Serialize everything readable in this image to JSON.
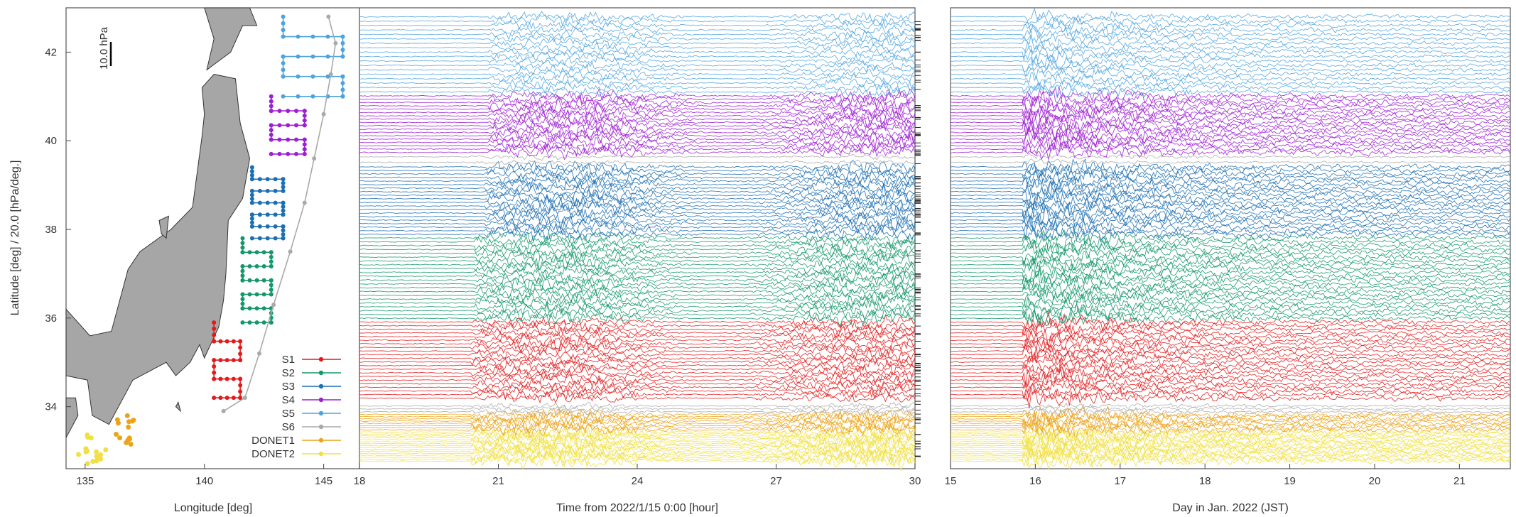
{
  "chart_data": [
    {
      "type": "map",
      "xlabel": "Longitude [deg]",
      "ylabel": "Latitude [deg] / 20.0 [hPa/deg.]",
      "xticks": [
        "135",
        "140",
        "145"
      ],
      "yticks": [
        "34",
        "36",
        "38",
        "40",
        "42"
      ],
      "xlim": [
        134.2,
        146.5
      ],
      "ylim": [
        32.6,
        43.0
      ],
      "scale_bar": "10.0 hPa",
      "legend": [
        "S1",
        "S2",
        "S3",
        "S4",
        "S5",
        "S6",
        "DONET1",
        "DONET2"
      ],
      "series": [
        {
          "name": "S1",
          "color": "#e31a1c",
          "lat_range": [
            34.2,
            35.9
          ]
        },
        {
          "name": "S2",
          "color": "#13976b",
          "lat_range": [
            35.9,
            37.8
          ]
        },
        {
          "name": "S3",
          "color": "#1c6fb3",
          "lat_range": [
            37.8,
            39.4
          ]
        },
        {
          "name": "S4",
          "color": "#9d1fd3",
          "lat_range": [
            39.7,
            41.0
          ]
        },
        {
          "name": "S5",
          "color": "#4da3df",
          "lat_range": [
            41.0,
            42.8
          ]
        },
        {
          "name": "S6",
          "color": "#a9a9a9",
          "lat_range": [
            33.9,
            42.8
          ]
        },
        {
          "name": "DONET1",
          "color": "#eba31a",
          "lat_range": [
            33.0,
            33.8
          ]
        },
        {
          "name": "DONET2",
          "color": "#f1e043",
          "lat_range": [
            32.7,
            33.4
          ]
        }
      ]
    },
    {
      "type": "line",
      "xlabel": "Time from 2022/1/15 0:00 [hour]",
      "xticks": [
        "18",
        "21",
        "24",
        "27",
        "30"
      ],
      "xlim": [
        18,
        30
      ],
      "ylim": [
        32.6,
        43.0
      ],
      "arrival_hour": {
        "S5": 20.8,
        "S4": 20.8,
        "S3": 20.7,
        "S2": 20.5,
        "S1": 20.4,
        "DONET": 20.4
      }
    },
    {
      "type": "line",
      "xlabel": "Day in Jan. 2022 (JST)",
      "xticks": [
        "15",
        "16",
        "17",
        "18",
        "19",
        "20",
        "21"
      ],
      "xlim": [
        15,
        21.6
      ],
      "ylim": [
        32.6,
        43.0
      ],
      "arrival_day": 15.85
    }
  ]
}
